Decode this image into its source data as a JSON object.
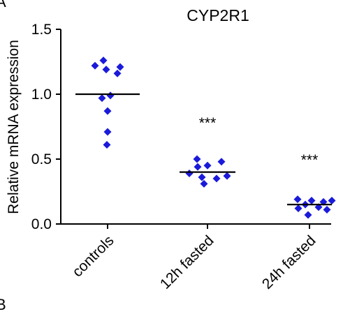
{
  "chart_data": {
    "type": "scatter",
    "title": "CYP2R1",
    "ylabel": "Relative mRNA expression",
    "xlabel": "",
    "ylim": [
      0,
      1.5
    ],
    "yticks": [
      "0.0",
      "0.5",
      "1.0",
      "1.5"
    ],
    "categories": [
      "controls",
      "12h fasted",
      "24h fasted"
    ],
    "marker_color": "#1a1adb",
    "groups": [
      {
        "category": "controls",
        "mean": 1.0,
        "significance": "",
        "points": [
          1.26,
          1.22,
          1.21,
          1.19,
          1.16,
          0.99,
          0.97,
          0.87,
          0.71,
          0.61
        ]
      },
      {
        "category": "12h fasted",
        "mean": 0.4,
        "significance": "***",
        "points": [
          0.5,
          0.48,
          0.45,
          0.44,
          0.39,
          0.37,
          0.36,
          0.35,
          0.31
        ]
      },
      {
        "category": "24h fasted",
        "mean": 0.15,
        "significance": "***",
        "points": [
          0.19,
          0.18,
          0.18,
          0.17,
          0.15,
          0.13,
          0.12,
          0.11,
          0.07
        ]
      }
    ]
  }
}
